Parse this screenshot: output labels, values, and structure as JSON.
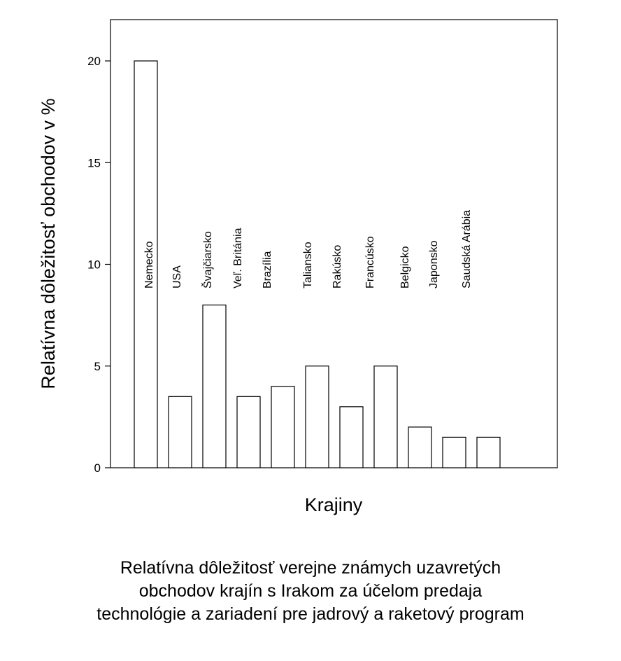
{
  "chart_data": {
    "type": "bar",
    "categories": [
      "Nemecko",
      "USA",
      "Švajčiarsko",
      "Veľ. Británia",
      "Brazília",
      "Taliansko",
      "Rakúsko",
      "Francúsko",
      "Belgicko",
      "Japonsko",
      "Saudská Arábia"
    ],
    "values": [
      20,
      3.5,
      8,
      3.5,
      4,
      5,
      3,
      5,
      2,
      1.5,
      1.5
    ],
    "xlabel": "Krajiny",
    "ylabel": "Relatívna dôležitosť obchodov v %",
    "ylim": [
      0,
      20
    ],
    "yticks": [
      "0",
      "5",
      "10",
      "15",
      "20"
    ],
    "grid": false,
    "bar_fill": "#ffffff",
    "bar_stroke": "#000000"
  },
  "caption": {
    "lines": [
      "Relatívna dôležitosť verejne známych uzavretých",
      "obchodov krajín s Irakom za účelom predaja",
      "technológie a zariadení pre jadrový a raketový program"
    ]
  }
}
